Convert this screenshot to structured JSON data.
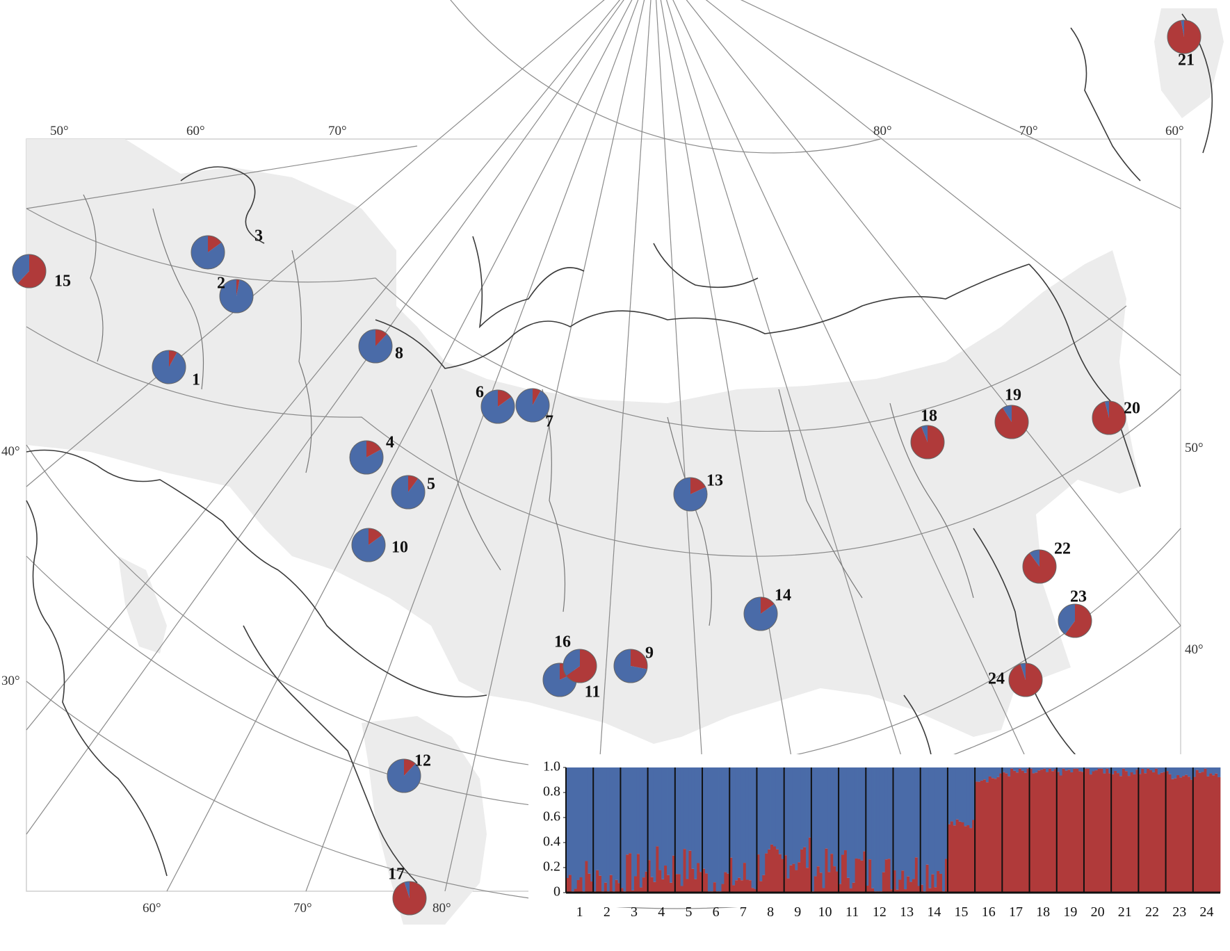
{
  "colors": {
    "cluster_a": "#4a6ba8",
    "cluster_b": "#b03a3a",
    "range": "#ececec"
  },
  "coord_labels": [
    "50°",
    "60°",
    "70°",
    "80°",
    "70°",
    "60°",
    "40°",
    "30°",
    "50°",
    "40°",
    "60°",
    "70°",
    "80°"
  ],
  "sites": [
    {
      "label": "1",
      "blue": 0.92
    },
    {
      "label": "2",
      "blue": 0.97
    },
    {
      "label": "3",
      "blue": 0.85
    },
    {
      "label": "4",
      "blue": 0.83
    },
    {
      "label": "5",
      "blue": 0.9
    },
    {
      "label": "6",
      "blue": 0.85
    },
    {
      "label": "7",
      "blue": 0.92
    },
    {
      "label": "8",
      "blue": 0.88
    },
    {
      "label": "9",
      "blue": 0.72
    },
    {
      "label": "10",
      "blue": 0.85
    },
    {
      "label": "11",
      "blue": 0.82
    },
    {
      "label": "12",
      "blue": 0.88
    },
    {
      "label": "13",
      "blue": 0.82
    },
    {
      "label": "14",
      "blue": 0.85
    },
    {
      "label": "15",
      "blue": 0.38
    },
    {
      "label": "16",
      "blue": 0.35
    },
    {
      "label": "17",
      "blue": 0.05
    },
    {
      "label": "18",
      "blue": 0.06
    },
    {
      "label": "19",
      "blue": 0.09
    },
    {
      "label": "20",
      "blue": 0.04
    },
    {
      "label": "21",
      "blue": 0.03
    },
    {
      "label": "22",
      "blue": 0.1
    },
    {
      "label": "23",
      "blue": 0.4
    },
    {
      "label": "24",
      "blue": 0.05
    }
  ],
  "chart_data": {
    "type": "bar",
    "title": "",
    "xlabel": "",
    "ylabel": "",
    "ylim": [
      0,
      1
    ],
    "yticks": [
      "1.0",
      "0.8",
      "0.6",
      "0.4",
      "0.2",
      "0"
    ],
    "categories": [
      "1",
      "2",
      "3",
      "4",
      "5",
      "6",
      "7",
      "8",
      "9",
      "10",
      "11",
      "12",
      "13",
      "14",
      "15",
      "16",
      "17",
      "18",
      "19",
      "20",
      "21",
      "22",
      "23",
      "24"
    ],
    "series": [
      {
        "values": [
          0.88,
          0.92,
          0.85,
          0.8,
          0.8,
          0.9,
          0.88,
          0.78,
          0.72,
          0.82,
          0.8,
          0.85,
          0.82,
          0.82,
          0.45,
          0.08,
          0.04,
          0.04,
          0.03,
          0.02,
          0.03,
          0.03,
          0.06,
          0.04
        ]
      },
      {
        "values": [
          0.12,
          0.08,
          0.15,
          0.2,
          0.2,
          0.1,
          0.12,
          0.22,
          0.28,
          0.18,
          0.2,
          0.15,
          0.18,
          0.18,
          0.55,
          0.92,
          0.96,
          0.96,
          0.97,
          0.98,
          0.97,
          0.97,
          0.94,
          0.96
        ]
      }
    ]
  }
}
